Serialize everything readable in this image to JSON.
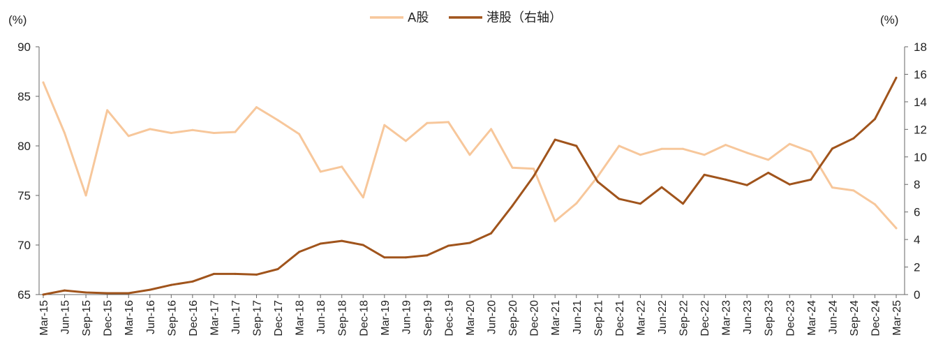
{
  "chart_data": {
    "type": "line",
    "title": "",
    "legend_position": "top-center",
    "grid": false,
    "left_axis": {
      "unit_label": "(%)",
      "ylim": [
        65,
        90
      ],
      "ticks": [
        65,
        70,
        75,
        80,
        85,
        90
      ]
    },
    "right_axis": {
      "unit_label": "(%)",
      "ylim": [
        0,
        18
      ],
      "ticks": [
        0,
        2,
        4,
        6,
        8,
        10,
        12,
        14,
        16,
        18
      ]
    },
    "categories": [
      "Mar-15",
      "Jun-15",
      "Sep-15",
      "Dec-15",
      "Mar-16",
      "Jun-16",
      "Sep-16",
      "Dec-16",
      "Mar-17",
      "Jun-17",
      "Sep-17",
      "Dec-17",
      "Mar-18",
      "Jun-18",
      "Sep-18",
      "Dec-18",
      "Mar-19",
      "Jun-19",
      "Sep-19",
      "Dec-19",
      "Mar-20",
      "Jun-20",
      "Sep-20",
      "Dec-20",
      "Mar-21",
      "Jun-21",
      "Sep-21",
      "Dec-21",
      "Mar-22",
      "Jun-22",
      "Sep-22",
      "Dec-22",
      "Mar-23",
      "Jun-23",
      "Sep-23",
      "Dec-23",
      "Mar-24",
      "Jun-24",
      "Sep-24",
      "Dec-24",
      "Mar-25"
    ],
    "series": [
      {
        "name": "A股",
        "axis": "left",
        "color": "#F7C79B",
        "values": [
          86.4,
          81.3,
          75.0,
          83.6,
          81.0,
          81.7,
          81.3,
          81.6,
          81.3,
          81.4,
          83.9,
          82.6,
          81.2,
          77.4,
          77.9,
          74.8,
          82.1,
          80.5,
          82.3,
          82.4,
          79.1,
          81.7,
          77.8,
          77.7,
          72.4,
          74.2,
          76.9,
          80.0,
          79.1,
          79.7,
          79.7,
          79.1,
          80.1,
          79.3,
          78.6,
          80.2,
          79.4,
          75.8,
          75.5,
          74.1,
          71.7
        ]
      },
      {
        "name": "港股（右轴）",
        "axis": "right",
        "color": "#A0541C",
        "values": [
          0.0,
          0.3,
          0.15,
          0.1,
          0.1,
          0.35,
          0.7,
          0.95,
          1.5,
          1.5,
          1.45,
          1.85,
          3.1,
          3.7,
          3.9,
          3.6,
          2.7,
          2.7,
          2.85,
          3.55,
          3.75,
          4.45,
          6.45,
          8.6,
          11.25,
          10.8,
          8.2,
          6.95,
          6.6,
          7.8,
          6.6,
          8.7,
          8.35,
          7.95,
          8.85,
          8.0,
          8.35,
          10.6,
          11.35,
          12.75,
          15.75
        ]
      }
    ]
  }
}
